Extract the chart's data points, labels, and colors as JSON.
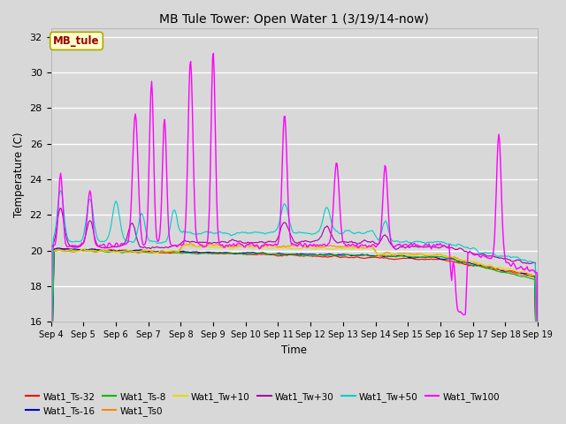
{
  "title": "MB Tule Tower: Open Water 1 (3/19/14-now)",
  "xlabel": "Time",
  "ylabel": "Temperature (C)",
  "ylim": [
    16,
    32.5
  ],
  "yticks": [
    16,
    18,
    20,
    22,
    24,
    26,
    28,
    30,
    32
  ],
  "x_labels": [
    "Sep 4",
    "Sep 5",
    "Sep 6",
    "Sep 7",
    "Sep 8",
    "Sep 9",
    "Sep 10",
    "Sep 11",
    "Sep 12",
    "Sep 13",
    "Sep 14",
    "Sep 15",
    "Sep 16",
    "Sep 17",
    "Sep 18",
    "Sep 19"
  ],
  "background_color": "#d8d8d8",
  "plot_bg_color": "#d8d8d8",
  "legend_label": "MB_tule",
  "series": [
    {
      "name": "Wat1_Ts-32",
      "color": "#ff0000"
    },
    {
      "name": "Wat1_Ts-16",
      "color": "#0000cc"
    },
    {
      "name": "Wat1_Ts-8",
      "color": "#00bb00"
    },
    {
      "name": "Wat1_Ts0",
      "color": "#ff8800"
    },
    {
      "name": "Wat1_Tw+10",
      "color": "#dddd00"
    },
    {
      "name": "Wat1_Tw+30",
      "color": "#aa00aa"
    },
    {
      "name": "Wat1_Tw+50",
      "color": "#00cccc"
    },
    {
      "name": "Wat1_Tw100",
      "color": "#ff00ff"
    }
  ]
}
